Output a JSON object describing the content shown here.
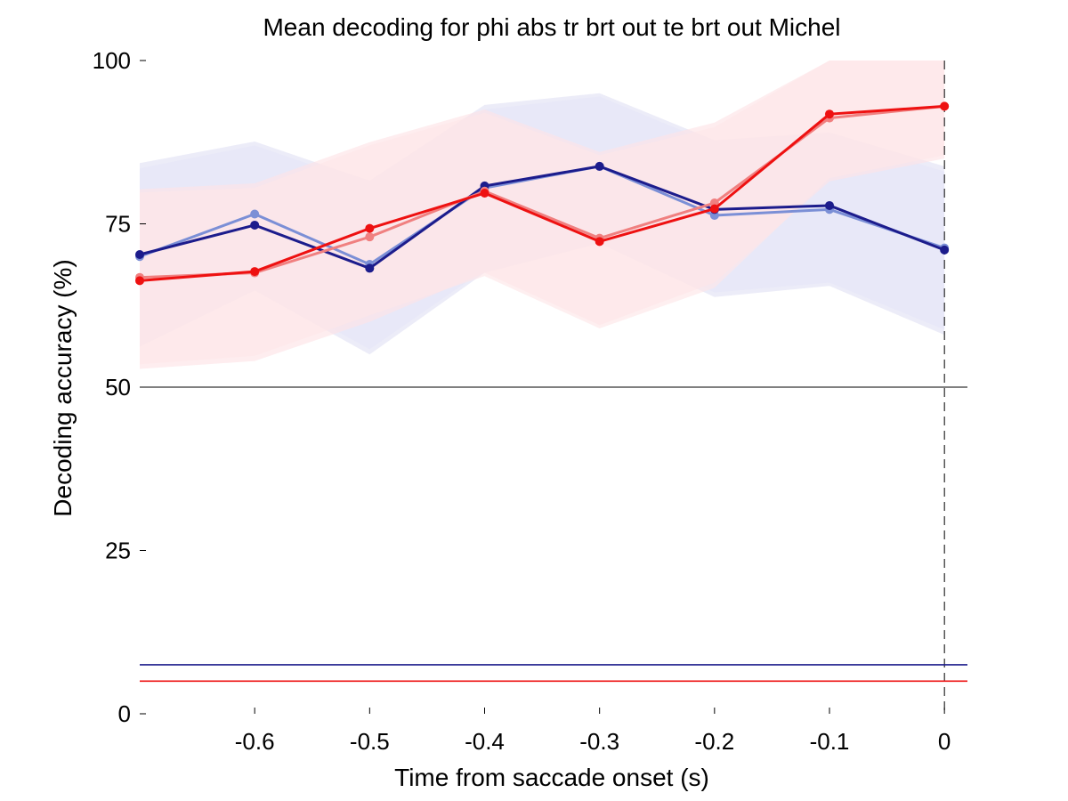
{
  "chart_data": {
    "type": "line",
    "title": "Mean decoding for phi abs tr brt out te brt out  Michel",
    "xlabel": "Time from saccade onset (s)",
    "ylabel": "Decoding accuracy (%)",
    "xlim": [
      -0.7,
      0.02
    ],
    "ylim": [
      0,
      100
    ],
    "x": [
      -0.7,
      -0.6,
      -0.5,
      -0.4,
      -0.3,
      -0.2,
      -0.1,
      0
    ],
    "x_ticks": [
      -0.6,
      -0.5,
      -0.4,
      -0.3,
      -0.2,
      -0.1,
      0
    ],
    "x_tick_labels": [
      "-0.6",
      "-0.5",
      "-0.4",
      "-0.3",
      "-0.2",
      "-0.1",
      "0"
    ],
    "y_ticks": [
      0,
      25,
      50,
      75,
      100
    ],
    "y_tick_labels": [
      "0",
      "25",
      "50",
      "75",
      "100"
    ],
    "grid": false,
    "legend": "none",
    "chance_level": 50,
    "event_line_x": 0,
    "series": [
      {
        "color": "#7b8fd6",
        "values": [
          70,
          76.5,
          68.8,
          80.5,
          83.8,
          76.3,
          77.2,
          71.3
        ],
        "band_upper": [
          84.3,
          87.6,
          81.6,
          93.2,
          95.0,
          87.8,
          89.0,
          83.8
        ],
        "band_lower": [
          56.2,
          64.8,
          55.0,
          67.5,
          72.0,
          63.8,
          65.5,
          58.0
        ],
        "band_color": "#e2e2f5"
      },
      {
        "color": "#1c1c8c",
        "values": [
          70.3,
          74.8,
          68.2,
          80.8,
          83.8,
          77.2,
          77.8,
          71.0
        ],
        "band_upper": [
          83.5,
          87.0,
          81.0,
          92.5,
          94.5,
          87.2,
          88.5,
          83.0
        ],
        "band_lower": [
          56.8,
          65.5,
          55.8,
          68.0,
          72.5,
          64.5,
          66.0,
          58.8
        ],
        "band_color": "#e6e6f7"
      },
      {
        "color": "#f08080",
        "values": [
          66.8,
          67.5,
          73.0,
          80.0,
          72.8,
          78.2,
          91.2,
          93.0
        ],
        "band_upper": [
          80.3,
          81.2,
          87.5,
          92.5,
          86.0,
          90.5,
          100,
          100
        ],
        "band_lower": [
          52.8,
          54.0,
          60.0,
          67.5,
          59.5,
          66.0,
          81.5,
          85.0
        ],
        "band_color": "#fde3e6"
      },
      {
        "color": "#ee1111",
        "values": [
          66.3,
          67.7,
          74.3,
          79.7,
          72.3,
          77.3,
          91.8,
          93.0
        ],
        "band_upper": [
          79.8,
          80.5,
          87.0,
          92.0,
          85.5,
          89.8,
          100,
          100
        ],
        "band_lower": [
          53.5,
          54.8,
          61.0,
          67.0,
          59.0,
          65.2,
          82.0,
          85.5
        ],
        "band_color": "#fde6e8"
      }
    ],
    "reference_lines": [
      {
        "y": 7.5,
        "color": "#1c1c8c"
      },
      {
        "y": 5,
        "color": "#ee1111"
      }
    ]
  }
}
